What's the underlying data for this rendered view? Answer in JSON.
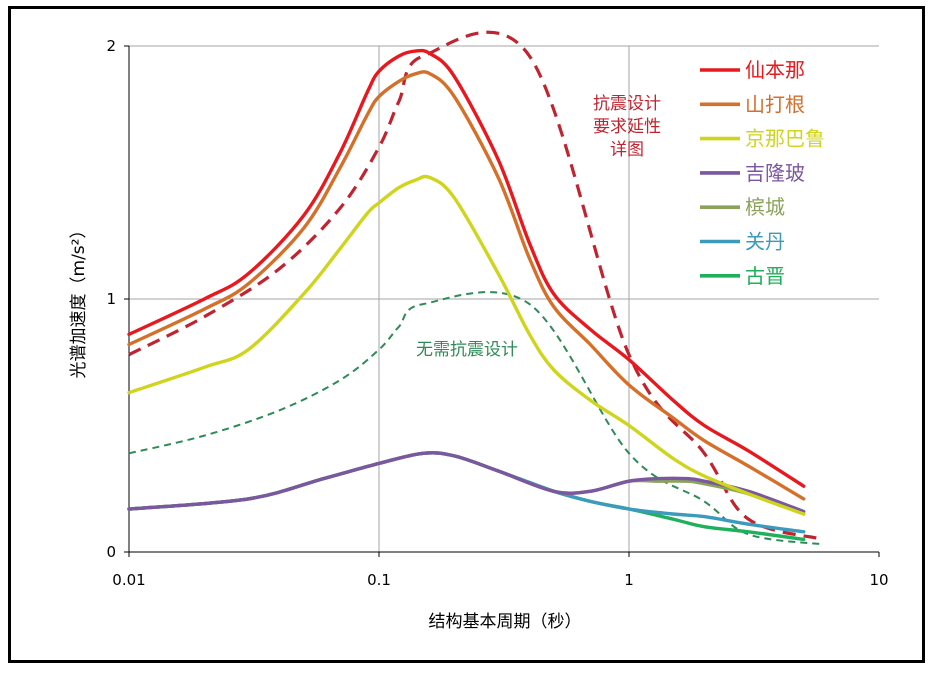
{
  "chart_data": {
    "type": "line",
    "title": "",
    "xlabel": "结构基本周期（秒）",
    "ylabel": "光谱加速度（m/s²）",
    "xscale": "log",
    "xlim": [
      0.01,
      10
    ],
    "ylim": [
      0,
      2
    ],
    "x_ticks": [
      "0.01",
      "0.1",
      "1",
      "10"
    ],
    "y_ticks": [
      "0",
      "1",
      "2"
    ],
    "grid": true,
    "legend_position": "top-right",
    "series": [
      {
        "name": "仙本那",
        "color": "#e8191e",
        "dash": "solid",
        "x": [
          0.01,
          0.02,
          0.03,
          0.05,
          0.07,
          0.09,
          0.1,
          0.12,
          0.14,
          0.16,
          0.2,
          0.3,
          0.4,
          0.5,
          0.7,
          1,
          1.5,
          2,
          3,
          5
        ],
        "y": [
          0.86,
          1.0,
          1.1,
          1.33,
          1.58,
          1.82,
          1.9,
          1.96,
          1.98,
          1.97,
          1.88,
          1.55,
          1.22,
          1.02,
          0.88,
          0.76,
          0.6,
          0.5,
          0.4,
          0.26
        ]
      },
      {
        "name": "山打根",
        "color": "#d4702a",
        "dash": "solid",
        "x": [
          0.01,
          0.02,
          0.03,
          0.05,
          0.07,
          0.09,
          0.1,
          0.12,
          0.14,
          0.16,
          0.2,
          0.3,
          0.4,
          0.5,
          0.7,
          1,
          1.5,
          2,
          3,
          5
        ],
        "y": [
          0.82,
          0.96,
          1.06,
          1.28,
          1.52,
          1.73,
          1.8,
          1.86,
          1.89,
          1.89,
          1.8,
          1.48,
          1.16,
          0.97,
          0.82,
          0.66,
          0.53,
          0.44,
          0.34,
          0.21
        ]
      },
      {
        "name": "京那巴鲁",
        "color": "#cfd41c",
        "dash": "solid",
        "x": [
          0.01,
          0.02,
          0.03,
          0.05,
          0.07,
          0.09,
          0.1,
          0.12,
          0.14,
          0.16,
          0.2,
          0.3,
          0.4,
          0.5,
          0.7,
          1,
          1.5,
          2,
          3,
          5
        ],
        "y": [
          0.63,
          0.73,
          0.8,
          1.02,
          1.2,
          1.34,
          1.38,
          1.44,
          1.47,
          1.48,
          1.4,
          1.1,
          0.86,
          0.72,
          0.6,
          0.5,
          0.37,
          0.3,
          0.23,
          0.15
        ]
      },
      {
        "name": "吉隆玻",
        "color": "#7a57a0",
        "dash": "solid",
        "x": [
          0.01,
          0.03,
          0.06,
          0.1,
          0.15,
          0.2,
          0.3,
          0.5,
          0.7,
          1,
          1.3,
          1.7,
          2,
          3,
          5
        ],
        "y": [
          0.17,
          0.21,
          0.29,
          0.35,
          0.39,
          0.38,
          0.32,
          0.24,
          0.24,
          0.28,
          0.29,
          0.29,
          0.28,
          0.24,
          0.16
        ]
      },
      {
        "name": "槟城",
        "color": "#8aa35a",
        "dash": "solid",
        "x": [
          0.01,
          0.03,
          0.06,
          0.1,
          0.15,
          0.2,
          0.3,
          0.5,
          0.7,
          1,
          1.3,
          1.7,
          2,
          3,
          5
        ],
        "y": [
          0.17,
          0.21,
          0.29,
          0.35,
          0.39,
          0.38,
          0.32,
          0.24,
          0.24,
          0.28,
          0.28,
          0.28,
          0.27,
          0.23,
          0.15
        ]
      },
      {
        "name": "关丹",
        "color": "#3c9bbd",
        "dash": "solid",
        "x": [
          0.01,
          0.03,
          0.06,
          0.1,
          0.15,
          0.2,
          0.3,
          0.5,
          0.7,
          1,
          1.5,
          2,
          3,
          5
        ],
        "y": [
          0.17,
          0.21,
          0.29,
          0.35,
          0.39,
          0.38,
          0.32,
          0.24,
          0.2,
          0.17,
          0.15,
          0.14,
          0.11,
          0.08
        ]
      },
      {
        "name": "古晋",
        "color": "#1eb05a",
        "dash": "solid",
        "x": [
          0.01,
          0.03,
          0.06,
          0.1,
          0.15,
          0.2,
          0.3,
          0.5,
          0.7,
          1,
          1.5,
          2,
          3,
          5
        ],
        "y": [
          0.17,
          0.21,
          0.29,
          0.35,
          0.39,
          0.38,
          0.32,
          0.24,
          0.2,
          0.17,
          0.13,
          0.1,
          0.08,
          0.05
        ]
      },
      {
        "name": "",
        "color": "#bf2430",
        "dash": "dash",
        "x": [
          0.01,
          0.02,
          0.04,
          0.07,
          0.1,
          0.12,
          0.15,
          0.4,
          1,
          2,
          3,
          6
        ],
        "y": [
          0.78,
          0.93,
          1.12,
          1.36,
          1.6,
          1.78,
          1.96,
          1.96,
          0.78,
          0.39,
          0.13,
          0.05
        ]
      },
      {
        "name": "",
        "color": "#2e8b57",
        "dash": "dash-thin",
        "x": [
          0.01,
          0.02,
          0.04,
          0.07,
          0.1,
          0.12,
          0.15,
          0.4,
          1,
          2,
          3,
          6
        ],
        "y": [
          0.39,
          0.46,
          0.56,
          0.68,
          0.8,
          0.89,
          0.98,
          0.98,
          0.39,
          0.2,
          0.07,
          0.03
        ]
      }
    ],
    "annotations": [
      {
        "text_lines": [
          "抗震设计",
          "要求延性",
          "详图"
        ],
        "color": "#bf2430"
      },
      {
        "text_lines": [
          "无需抗震设计"
        ],
        "color": "#2e8b57"
      }
    ]
  }
}
